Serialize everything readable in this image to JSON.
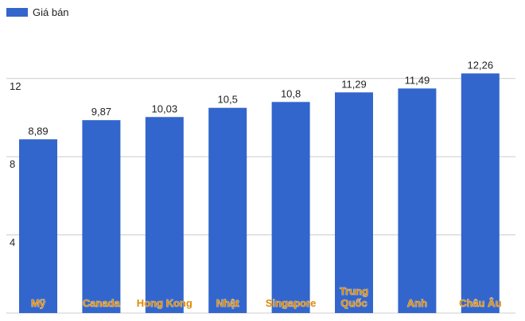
{
  "chart_data": {
    "type": "bar",
    "categories": [
      "Mỹ",
      "Canada",
      "Hong Kong",
      "Nhật",
      "Singapore",
      "Trung Quốc",
      "Anh",
      "Châu Âu"
    ],
    "series": [
      {
        "name": "Giá bán",
        "values": [
          8.89,
          9.87,
          10.03,
          10.5,
          10.8,
          11.29,
          11.49,
          12.26
        ]
      }
    ],
    "data_labels": [
      "8,89",
      "9,87",
      "10,03",
      "10,5",
      "10,8",
      "11,29",
      "11,49",
      "12,26"
    ],
    "y_ticks": [
      4,
      8,
      12
    ],
    "ylim": [
      0,
      12.26
    ],
    "grid": true,
    "legend_position": "top-left",
    "colors": {
      "bar": "#3366cc",
      "category_label": "#e08a00",
      "gridline": "#cccccc",
      "axis_text": "#222222"
    }
  }
}
